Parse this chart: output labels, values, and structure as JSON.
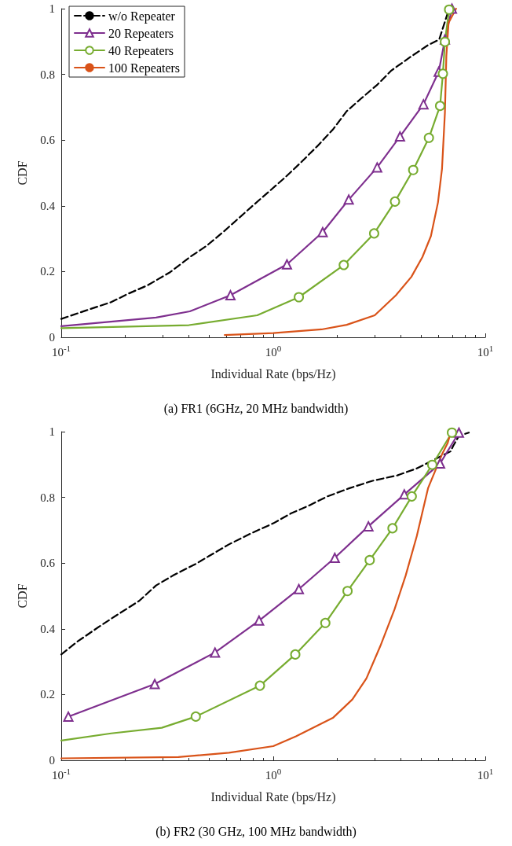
{
  "chart_data": [
    {
      "type": "line",
      "title": "(a) FR1 (6GHz, 20 MHz bandwidth)",
      "xlabel": "Individual Rate (bps/Hz)",
      "ylabel": "CDF",
      "log": "x",
      "xlim": [
        0.1,
        10
      ],
      "xticks": [
        {
          "value": 0.1,
          "label": "10$^{-1}$"
        },
        {
          "value": 1,
          "label": "10$^{0}$"
        },
        {
          "value": 10,
          "label": "10$^{1}$"
        }
      ],
      "ylim": [
        0,
        1
      ],
      "yticks": [
        0,
        0.2,
        0.4,
        0.6,
        0.8,
        1
      ],
      "grid": false,
      "legend": "top left",
      "series": [
        {
          "name": "w/o Repeater",
          "color": "#000000",
          "marker": "none",
          "line_style": "dashed",
          "x": [
            0.1,
            0.13,
            0.172,
            0.206,
            0.255,
            0.326,
            0.404,
            0.484,
            0.582,
            0.789,
            1.14,
            1.36,
            1.61,
            1.91,
            2.22,
            2.59,
            3.1,
            3.61,
            4.48,
            5.37,
            6.06,
            6.75
          ],
          "values": [
            0.056,
            0.081,
            0.107,
            0.132,
            0.158,
            0.198,
            0.244,
            0.278,
            0.321,
            0.397,
            0.487,
            0.534,
            0.581,
            0.632,
            0.688,
            0.726,
            0.769,
            0.812,
            0.855,
            0.889,
            0.906,
            1.0
          ]
        },
        {
          "name": "20 Repeaters",
          "color": "#7e2f8e",
          "marker": "triangle",
          "line_style": "solid",
          "x": [
            0.628,
            1.16,
            1.71,
            2.27,
            3.09,
            3.96,
            5.11,
            6.03,
            6.45,
            6.96
          ],
          "values": [
            0.128,
            0.222,
            0.32,
            0.419,
            0.517,
            0.611,
            0.709,
            0.808,
            0.906,
            1.0
          ]
        },
        {
          "color": "#7e2f8e",
          "marker": "none",
          "line_style": "solid",
          "x": [
            0.1,
            0.28,
            0.404,
            0.628
          ],
          "values": [
            0.034,
            0.06,
            0.079,
            0.128
          ]
        },
        {
          "name": "40 Repeaters",
          "color": "#77ac30",
          "marker": "circle",
          "line_style": "solid",
          "x": [
            1.32,
            2.15,
            2.99,
            3.75,
            4.57,
            5.42,
            6.12,
            6.31,
            6.45,
            6.75
          ],
          "values": [
            0.122,
            0.22,
            0.316,
            0.413,
            0.509,
            0.607,
            0.704,
            0.802,
            0.899,
            0.997
          ]
        },
        {
          "color": "#77ac30",
          "marker": "none",
          "line_style": "solid",
          "x": [
            0.1,
            0.4,
            0.84,
            1.32
          ],
          "values": [
            0.028,
            0.037,
            0.067,
            0.122
          ]
        },
        {
          "name": "100 Repeaters",
          "color": "#d95319",
          "marker": "none",
          "line_style": "solid",
          "x": [
            0.59,
            1.0,
            1.69,
            2.22,
            3.01,
            3.79,
            4.48,
            5.05,
            5.54,
            5.98,
            6.25,
            6.45,
            6.55,
            6.71,
            7.28
          ],
          "values": [
            0.007,
            0.013,
            0.024,
            0.038,
            0.067,
            0.128,
            0.184,
            0.244,
            0.308,
            0.41,
            0.513,
            0.684,
            0.855,
            0.957,
            1.0
          ]
        }
      ]
    },
    {
      "type": "line",
      "title": "(b) FR2 (30 GHz, 100 MHz bandwidth)",
      "xlabel": "Individual Rate (bps/Hz)",
      "ylabel": "CDF",
      "log": "x",
      "xlim": [
        0.1,
        10
      ],
      "xticks": [
        {
          "value": 0.1,
          "label": "10$^{-1}$"
        },
        {
          "value": 1,
          "label": "10$^{0}$"
        },
        {
          "value": 10,
          "label": "10$^{1}$"
        }
      ],
      "ylim": [
        0,
        1
      ],
      "yticks": [
        0,
        0.2,
        0.4,
        0.6,
        0.8,
        1
      ],
      "grid": false,
      "legend": false,
      "series": [
        {
          "color": "#000000",
          "marker": "none",
          "line_style": "dashed",
          "x": [
            0.1,
            0.119,
            0.152,
            0.183,
            0.233,
            0.28,
            0.336,
            0.429,
            0.499,
            0.618,
            0.789,
            1.0,
            1.21,
            1.45,
            1.8,
            2.29,
            2.92,
            3.85,
            4.75,
            5.71,
            6.86,
            7.06,
            7.51,
            8.36
          ],
          "values": [
            0.322,
            0.361,
            0.408,
            0.442,
            0.485,
            0.532,
            0.562,
            0.597,
            0.622,
            0.657,
            0.691,
            0.721,
            0.751,
            0.773,
            0.803,
            0.828,
            0.85,
            0.867,
            0.888,
            0.914,
            0.94,
            0.957,
            0.987,
            0.997
          ]
        },
        {
          "color": "#7e2f8e",
          "marker": "triangle",
          "line_style": "solid",
          "x": [
            0.108,
            0.276,
            0.531,
            0.857,
            1.32,
            1.95,
            2.81,
            4.15,
            6.12,
            7.51
          ],
          "values": [
            0.133,
            0.232,
            0.328,
            0.425,
            0.521,
            0.616,
            0.712,
            0.809,
            0.903,
            0.997
          ]
        },
        {
          "color": "#77ac30",
          "marker": "circle",
          "line_style": "solid",
          "x": [
            0.431,
            0.865,
            1.27,
            1.76,
            2.24,
            2.85,
            3.65,
            4.5,
            5.62,
            6.96
          ],
          "values": [
            0.133,
            0.227,
            0.322,
            0.418,
            0.515,
            0.609,
            0.706,
            0.803,
            0.899,
            0.997
          ]
        },
        {
          "color": "#77ac30",
          "marker": "none",
          "line_style": "solid",
          "x": [
            0.1,
            0.172,
            0.298,
            0.431
          ],
          "values": [
            0.06,
            0.082,
            0.099,
            0.133
          ]
        },
        {
          "color": "#d95319",
          "marker": "none",
          "line_style": "solid",
          "x": [
            0.1,
            0.357,
            0.618,
            1.0,
            1.28,
            1.91,
            2.36,
            2.75,
            3.2,
            3.73,
            4.21,
            4.75,
            5.37,
            6.25,
            6.65,
            6.86,
            7.28
          ],
          "values": [
            0.006,
            0.01,
            0.023,
            0.043,
            0.073,
            0.129,
            0.185,
            0.249,
            0.348,
            0.459,
            0.562,
            0.682,
            0.828,
            0.931,
            0.966,
            0.996,
            1.0
          ]
        }
      ]
    }
  ]
}
